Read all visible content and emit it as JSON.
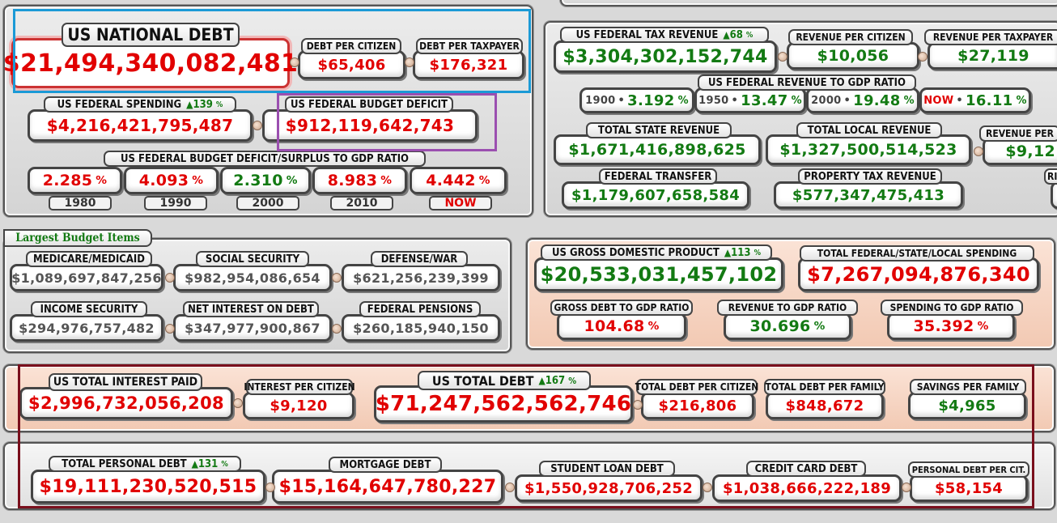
{
  "national": {
    "debt_label": "US NATIONAL DEBT",
    "debt_value": "$21,494,340,082,481",
    "per_citizen_label": "DEBT PER CITIZEN",
    "per_citizen_value": "$65,406",
    "per_taxpayer_label": "DEBT PER TAXPAYER",
    "per_taxpayer_value": "$176,321",
    "spending_label": "US FEDERAL SPENDING",
    "spending_change": "139",
    "spending_value": "$4,216,421,795,487",
    "deficit_label": "US FEDERAL BUDGET DEFICIT",
    "deficit_value": "$912,119,642,743",
    "ratio_label": "US FEDERAL BUDGET DEFICIT/SURPLUS TO GDP RATIO",
    "ratios": [
      {
        "value": "2.285",
        "year": "1980",
        "color": "red"
      },
      {
        "value": "4.093",
        "year": "1990",
        "color": "red"
      },
      {
        "value": "2.310",
        "year": "2000",
        "color": "green"
      },
      {
        "value": "8.983",
        "year": "2010",
        "color": "red"
      },
      {
        "value": "4.442",
        "year": "NOW",
        "color": "red"
      }
    ],
    "pct_sign": "%"
  },
  "revenue": {
    "tax_label": "US FEDERAL TAX REVENUE",
    "tax_change": "68",
    "tax_value": "$3,304,302,152,744",
    "per_citizen_label": "REVENUE PER CITIZEN",
    "per_citizen_value": "$10,056",
    "per_taxpayer_label": "REVENUE PER TAXPAYER",
    "per_taxpayer_value": "$27,119",
    "gdp_ratio_label": "US FEDERAL REVENUE TO GDP RATIO",
    "gdp_ratios": [
      {
        "year": "1900",
        "value": "3.192"
      },
      {
        "year": "1950",
        "value": "13.47"
      },
      {
        "year": "2000",
        "value": "19.48"
      },
      {
        "year": "NOW",
        "value": "16.11"
      }
    ],
    "state_label": "TOTAL STATE REVENUE",
    "state_value": "$1,671,416,898,625",
    "local_label": "TOTAL LOCAL REVENUE",
    "local_value": "$1,327,500,514,523",
    "per_cut_label": "REVENUE PER",
    "per_cut_value": "$9,12",
    "transfer_label": "FEDERAL TRANSFER",
    "transfer_value": "$1,179,607,658,584",
    "property_label": "PROPERTY TAX REVENUE",
    "property_value": "$577,347,475,413",
    "cut_label": "RI"
  },
  "budget": {
    "title": "Largest Budget Items",
    "items": [
      {
        "label": "MEDICARE/MEDICAID",
        "value": "$1,089,697,847,256"
      },
      {
        "label": "SOCIAL SECURITY",
        "value": "$982,954,086,654"
      },
      {
        "label": "DEFENSE/WAR",
        "value": "$621,256,239,399"
      },
      {
        "label": "INCOME SECURITY",
        "value": "$294,976,757,482"
      },
      {
        "label": "NET INTEREST ON DEBT",
        "value": "$347,977,900,867"
      },
      {
        "label": "FEDERAL PENSIONS",
        "value": "$260,185,940,150"
      }
    ]
  },
  "gdp": {
    "gdp_label": "US GROSS DOMESTIC PRODUCT",
    "gdp_change": "113",
    "gdp_value": "$20,533,031,457,102",
    "total_spending_label": "TOTAL FEDERAL/STATE/LOCAL SPENDING",
    "total_spending_value": "$7,267,094,876,340",
    "debt_gdp_label": "GROSS DEBT TO GDP RATIO",
    "debt_gdp_value": "104.68",
    "rev_gdp_label": "REVENUE TO GDP RATIO",
    "rev_gdp_value": "30.696",
    "spend_gdp_label": "SPENDING TO GDP RATIO",
    "spend_gdp_value": "35.392"
  },
  "total": {
    "interest_label": "US TOTAL INTEREST PAID",
    "interest_value": "$2,996,732,056,208",
    "interest_citizen_label": "INTEREST PER CITIZEN",
    "interest_citizen_value": "$9,120",
    "debt_label": "US TOTAL DEBT",
    "debt_change": "167",
    "debt_value": "$71,247,562,562,746",
    "debt_citizen_label": "TOTAL DEBT PER CITIZEN",
    "debt_citizen_value": "$216,806",
    "debt_family_label": "TOTAL DEBT PER FAMILY",
    "debt_family_value": "$848,672",
    "savings_label": "SAVINGS PER FAMILY",
    "savings_value": "$4,965",
    "personal_label": "TOTAL PERSONAL DEBT",
    "personal_change": "131",
    "personal_value": "$19,111,230,520,515",
    "mortgage_label": "MORTGAGE DEBT",
    "mortgage_value": "$15,164,647,780,227",
    "student_label": "STUDENT LOAN DEBT",
    "student_value": "$1,550,928,706,252",
    "credit_label": "CREDIT CARD DEBT",
    "credit_value": "$1,038,666,222,189",
    "personal_citizen_label": "PERSONAL DEBT PER CIT.",
    "personal_citizen_value": "$58,154"
  },
  "colors": {
    "red": "#e10000",
    "green": "#137a13",
    "highlight_blue": "#1b9ad6",
    "highlight_purple": "#9b4fb0",
    "highlight_maroon": "#7a0f1c"
  }
}
